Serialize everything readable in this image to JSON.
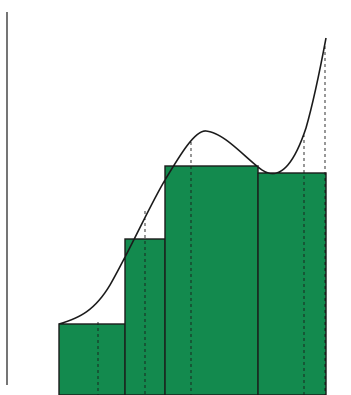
{
  "diagram": {
    "kind": "riemann-sum-rectangles",
    "colors": {
      "background": "#ffffff",
      "rectangle_fill": "#138a4e",
      "outline": "#1a1a1a",
      "curve": "#1a1a1a",
      "guide": "#1a1a1a"
    },
    "rectangle_count": 4,
    "curve_style": "solid",
    "guide_style": "dashed",
    "axis": "vertical-left"
  }
}
